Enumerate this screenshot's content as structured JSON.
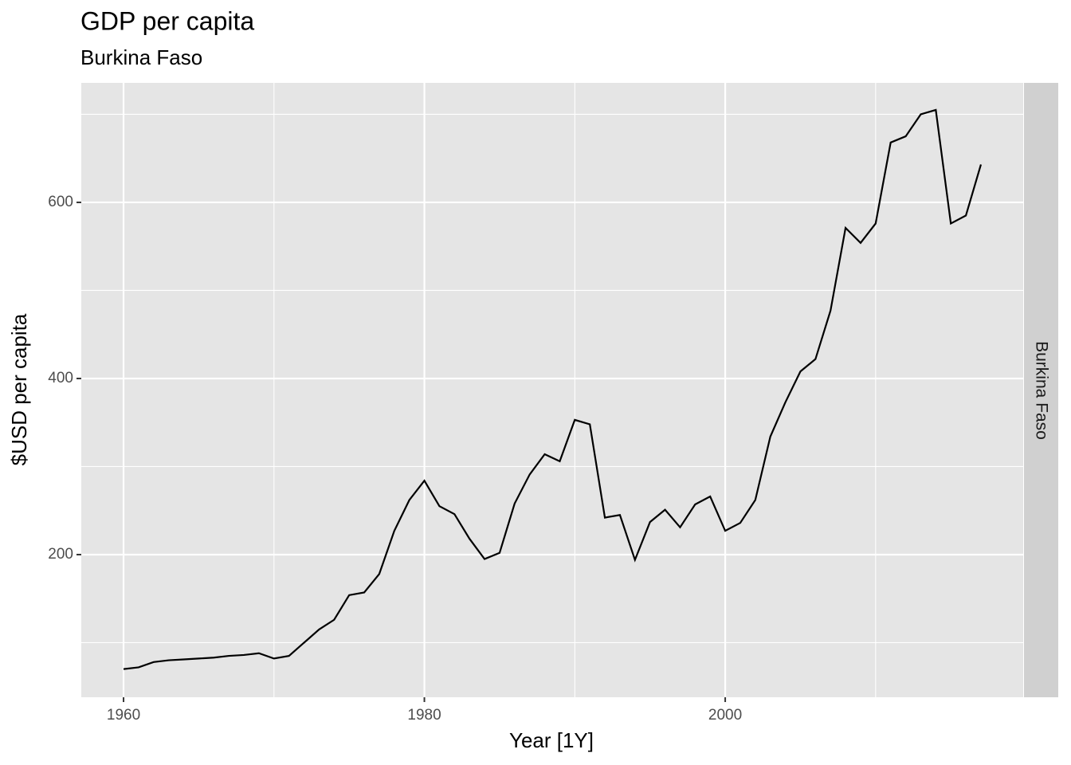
{
  "chart_data": {
    "type": "line",
    "title": "GDP per capita",
    "subtitle": "Burkina Faso",
    "x_label": "Year [1Y]",
    "y_label": "$USD per capita",
    "facet_label": "Burkina Faso",
    "x": [
      1960,
      1961,
      1962,
      1963,
      1964,
      1965,
      1966,
      1967,
      1968,
      1969,
      1970,
      1971,
      1972,
      1973,
      1974,
      1975,
      1976,
      1977,
      1978,
      1979,
      1980,
      1981,
      1982,
      1983,
      1984,
      1985,
      1986,
      1987,
      1988,
      1989,
      1990,
      1991,
      1992,
      1993,
      1994,
      1995,
      1996,
      1997,
      1998,
      1999,
      2000,
      2001,
      2002,
      2003,
      2004,
      2005,
      2006,
      2007,
      2008,
      2009,
      2010,
      2011,
      2012,
      2013,
      2014,
      2015,
      2016,
      2017
    ],
    "series": [
      {
        "name": "Burkina Faso",
        "color": "#000000",
        "values": [
          70,
          72,
          78,
          80,
          81,
          82,
          83,
          85,
          86,
          88,
          82,
          85,
          100,
          115,
          126,
          154,
          157,
          178,
          227,
          262,
          284,
          255,
          246,
          218,
          195,
          202,
          258,
          291,
          314,
          306,
          353,
          348,
          242,
          245,
          194,
          237,
          251,
          231,
          257,
          266,
          227,
          236,
          262,
          334,
          373,
          408,
          422,
          477,
          571,
          554,
          576,
          668,
          675,
          700,
          705,
          576,
          585,
          643
        ]
      }
    ],
    "xlim": [
      1957.19,
      2019.81
    ],
    "ylim": [
      38,
      735.7
    ],
    "xticks": [
      1960,
      1980,
      2000
    ],
    "yticks": [
      200,
      400,
      600
    ],
    "xminor": [
      1970,
      1990,
      2010
    ],
    "yminor": [
      100,
      300,
      500,
      700
    ],
    "grid": true
  }
}
